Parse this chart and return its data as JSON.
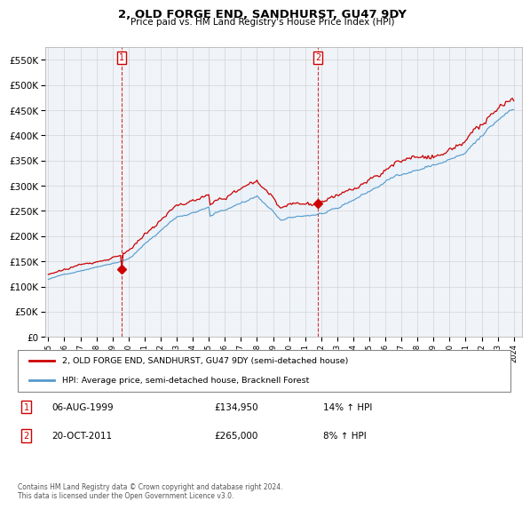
{
  "title": "2, OLD FORGE END, SANDHURST, GU47 9DY",
  "subtitle": "Price paid vs. HM Land Registry's House Price Index (HPI)",
  "legend_line1": "2, OLD FORGE END, SANDHURST, GU47 9DY (semi-detached house)",
  "legend_line2": "HPI: Average price, semi-detached house, Bracknell Forest",
  "footnote": "Contains HM Land Registry data © Crown copyright and database right 2024.\nThis data is licensed under the Open Government Licence v3.0.",
  "marker1_date": 1999.58,
  "marker1_value": 134950,
  "marker2_date": 2011.8,
  "marker2_value": 265000,
  "red_color": "#cc0000",
  "blue_color": "#5599cc",
  "fill_color": "#ddeeff",
  "ylim_min": 0,
  "ylim_max": 575000,
  "xlim_min": 1994.8,
  "xlim_max": 2024.5,
  "bg_color": "#f0f4f8",
  "table_row1_date": "06-AUG-1999",
  "table_row1_price": "£134,950",
  "table_row1_hpi": "14% ↑ HPI",
  "table_row2_date": "20-OCT-2011",
  "table_row2_price": "£265,000",
  "table_row2_hpi": "8% ↑ HPI"
}
